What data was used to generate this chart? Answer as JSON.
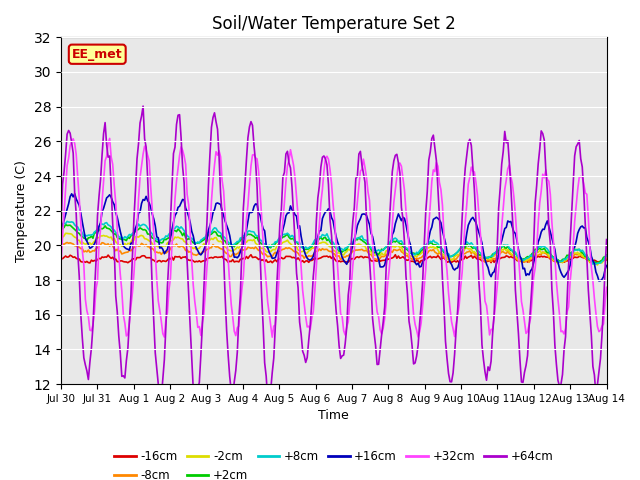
{
  "title": "Soil/Water Temperature Set 2",
  "xlabel": "Time",
  "ylabel": "Temperature (C)",
  "ylim": [
    12,
    32
  ],
  "yticks": [
    12,
    14,
    16,
    18,
    20,
    22,
    24,
    26,
    28,
    30,
    32
  ],
  "bg_color": "#e8e8e8",
  "series_colors": {
    "-16cm": "#dd0000",
    "-8cm": "#ff8800",
    "-2cm": "#dddd00",
    "+2cm": "#00cc00",
    "+8cm": "#00cccc",
    "+16cm": "#0000bb",
    "+32cm": "#ff44ff",
    "+64cm": "#aa00cc"
  },
  "watermark_text": "EE_met",
  "watermark_bg": "#ffff99",
  "watermark_border": "#cc0000",
  "n_days": 15
}
